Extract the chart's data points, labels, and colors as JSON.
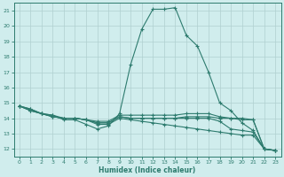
{
  "title": "",
  "xlabel": "Humidex (Indice chaleur)",
  "ylabel": "",
  "xlim": [
    -0.5,
    23.5
  ],
  "ylim": [
    11.5,
    21.5
  ],
  "xticks": [
    0,
    1,
    2,
    3,
    4,
    5,
    6,
    7,
    8,
    9,
    10,
    11,
    12,
    13,
    14,
    15,
    16,
    17,
    18,
    19,
    20,
    21,
    22,
    23
  ],
  "yticks": [
    12,
    13,
    14,
    15,
    16,
    17,
    18,
    19,
    20,
    21
  ],
  "background_color": "#d0eded",
  "grid_color": "#b0d0d0",
  "line_color": "#2d7b6e",
  "series": [
    [
      14.8,
      14.6,
      14.3,
      14.2,
      13.9,
      13.9,
      13.6,
      13.3,
      13.5,
      14.3,
      17.5,
      19.8,
      21.1,
      21.1,
      21.2,
      19.4,
      18.7,
      17.0,
      15.0,
      14.5,
      13.7,
      13.2,
      12.0,
      11.9
    ],
    [
      14.8,
      14.6,
      14.3,
      14.2,
      14.0,
      14.0,
      13.9,
      13.8,
      13.8,
      14.2,
      14.2,
      14.2,
      14.2,
      14.2,
      14.2,
      14.3,
      14.3,
      14.3,
      14.1,
      14.0,
      13.9,
      13.9,
      12.0,
      11.9
    ],
    [
      14.8,
      14.5,
      14.3,
      14.1,
      14.0,
      14.0,
      13.9,
      13.7,
      13.7,
      14.1,
      14.0,
      14.0,
      14.0,
      14.0,
      14.0,
      14.0,
      14.0,
      14.0,
      13.8,
      13.3,
      13.2,
      13.1,
      12.0,
      11.9
    ],
    [
      14.8,
      14.5,
      14.3,
      14.1,
      14.0,
      14.0,
      13.9,
      13.7,
      13.7,
      14.1,
      14.0,
      14.0,
      14.0,
      14.0,
      14.0,
      14.1,
      14.1,
      14.1,
      14.0,
      14.0,
      14.0,
      13.9,
      12.0,
      11.9
    ],
    [
      14.8,
      14.5,
      14.3,
      14.1,
      14.0,
      14.0,
      13.9,
      13.6,
      13.6,
      14.0,
      13.9,
      13.8,
      13.7,
      13.6,
      13.5,
      13.4,
      13.3,
      13.2,
      13.1,
      13.0,
      12.9,
      12.9,
      12.0,
      11.9
    ]
  ]
}
